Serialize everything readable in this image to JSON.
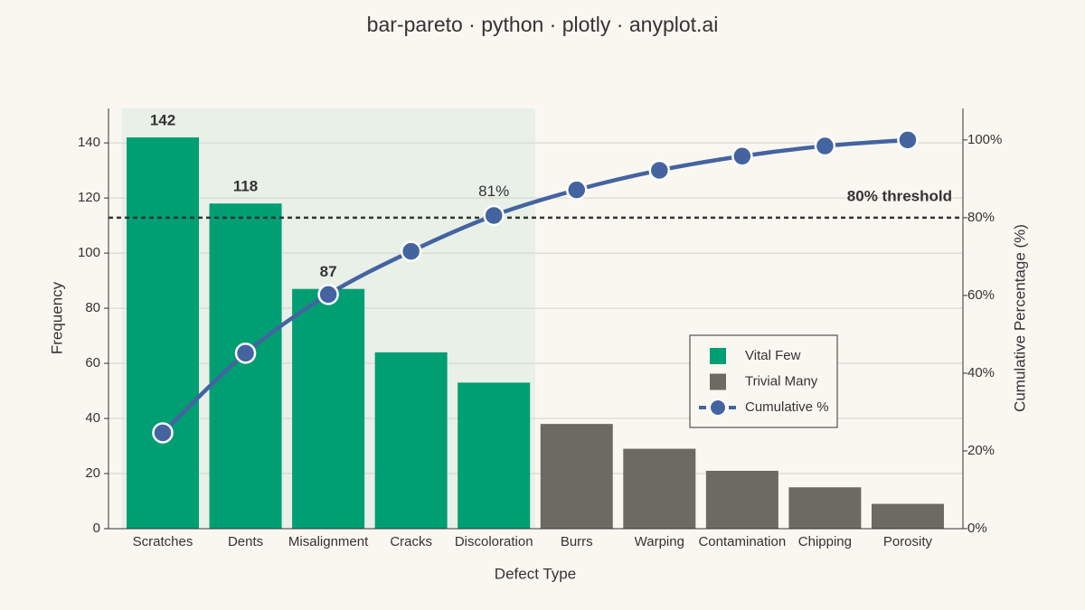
{
  "chart_data": {
    "type": "pareto",
    "title": "bar-pareto · python · plotly · anyplot.ai",
    "x_label": "Defect Type",
    "y_label": "Frequency",
    "y2_label": "Cumulative Percentage (%)",
    "categories": [
      "Scratches",
      "Dents",
      "Misalignment",
      "Cracks",
      "Discoloration",
      "Burrs",
      "Warping",
      "Contamination",
      "Chipping",
      "Porosity"
    ],
    "series": [
      {
        "name": "Vital Few",
        "color": "#009e73",
        "values": [
          142,
          118,
          87,
          64,
          53,
          null,
          null,
          null,
          null,
          null
        ],
        "value_labels": [
          "142",
          "118",
          "87",
          null,
          null,
          null,
          null,
          null,
          null,
          null
        ]
      },
      {
        "name": "Trivial Many",
        "color": "#6b6a63",
        "values": [
          null,
          null,
          null,
          null,
          null,
          38,
          29,
          21,
          15,
          9
        ]
      },
      {
        "name": "Cumulative %",
        "color": "#4464a0",
        "axis": "y2",
        "values": [
          24.65,
          45.14,
          60.24,
          71.35,
          80.56,
          87.15,
          92.19,
          95.83,
          98.44,
          100
        ],
        "value_labels": [
          null,
          null,
          null,
          null,
          "81%",
          null,
          null,
          null,
          null,
          null
        ]
      }
    ],
    "threshold": {
      "value": 80,
      "label": "80% threshold"
    },
    "ylim": [
      0,
      152.5
    ],
    "yticks": [
      0,
      20,
      40,
      60,
      80,
      100,
      120,
      140
    ],
    "y2lim": [
      0,
      108.1
    ],
    "y2ticks": [
      {
        "value": 0,
        "label": "0%"
      },
      {
        "value": 20,
        "label": "20%"
      },
      {
        "value": 40,
        "label": "40%"
      },
      {
        "value": 60,
        "label": "60%"
      },
      {
        "value": 80,
        "label": "80%"
      },
      {
        "value": 100,
        "label": "100%"
      }
    ],
    "grid": true,
    "legend": "right"
  }
}
